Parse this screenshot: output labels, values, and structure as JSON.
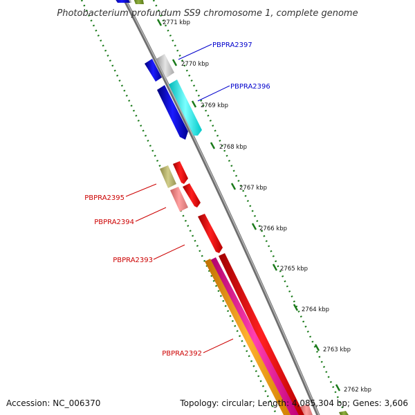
{
  "title": "Photobacterium profundum SS9 chromosome 1, complete genome",
  "accession": "Accession: NC_006370",
  "summary": "Topology: circular; Length: 4,085,304 bp; Genes: 3,606",
  "colors": {
    "backbone": "#888888",
    "tick": "#1a7a1a",
    "label_blue": "#0000cc",
    "label_red": "#cc0000"
  },
  "chart_data": {
    "type": "genome-map",
    "ticks": [
      "2771 kbp",
      "2770 kbp",
      "2769 kbp",
      "2768 kbp",
      "2767 kbp",
      "2766 kbp",
      "2765 kbp",
      "2764 kbp",
      "2763 kbp",
      "2762 kbp"
    ],
    "gene_labels": [
      {
        "name": "PBPRA2397",
        "color": "blue"
      },
      {
        "name": "PBPRA2396",
        "color": "blue"
      },
      {
        "name": "PBPRA2395",
        "color": "red"
      },
      {
        "name": "PBPRA2394",
        "color": "red"
      },
      {
        "name": "PBPRA2393",
        "color": "red"
      },
      {
        "name": "PBPRA2392",
        "color": "red"
      }
    ]
  }
}
